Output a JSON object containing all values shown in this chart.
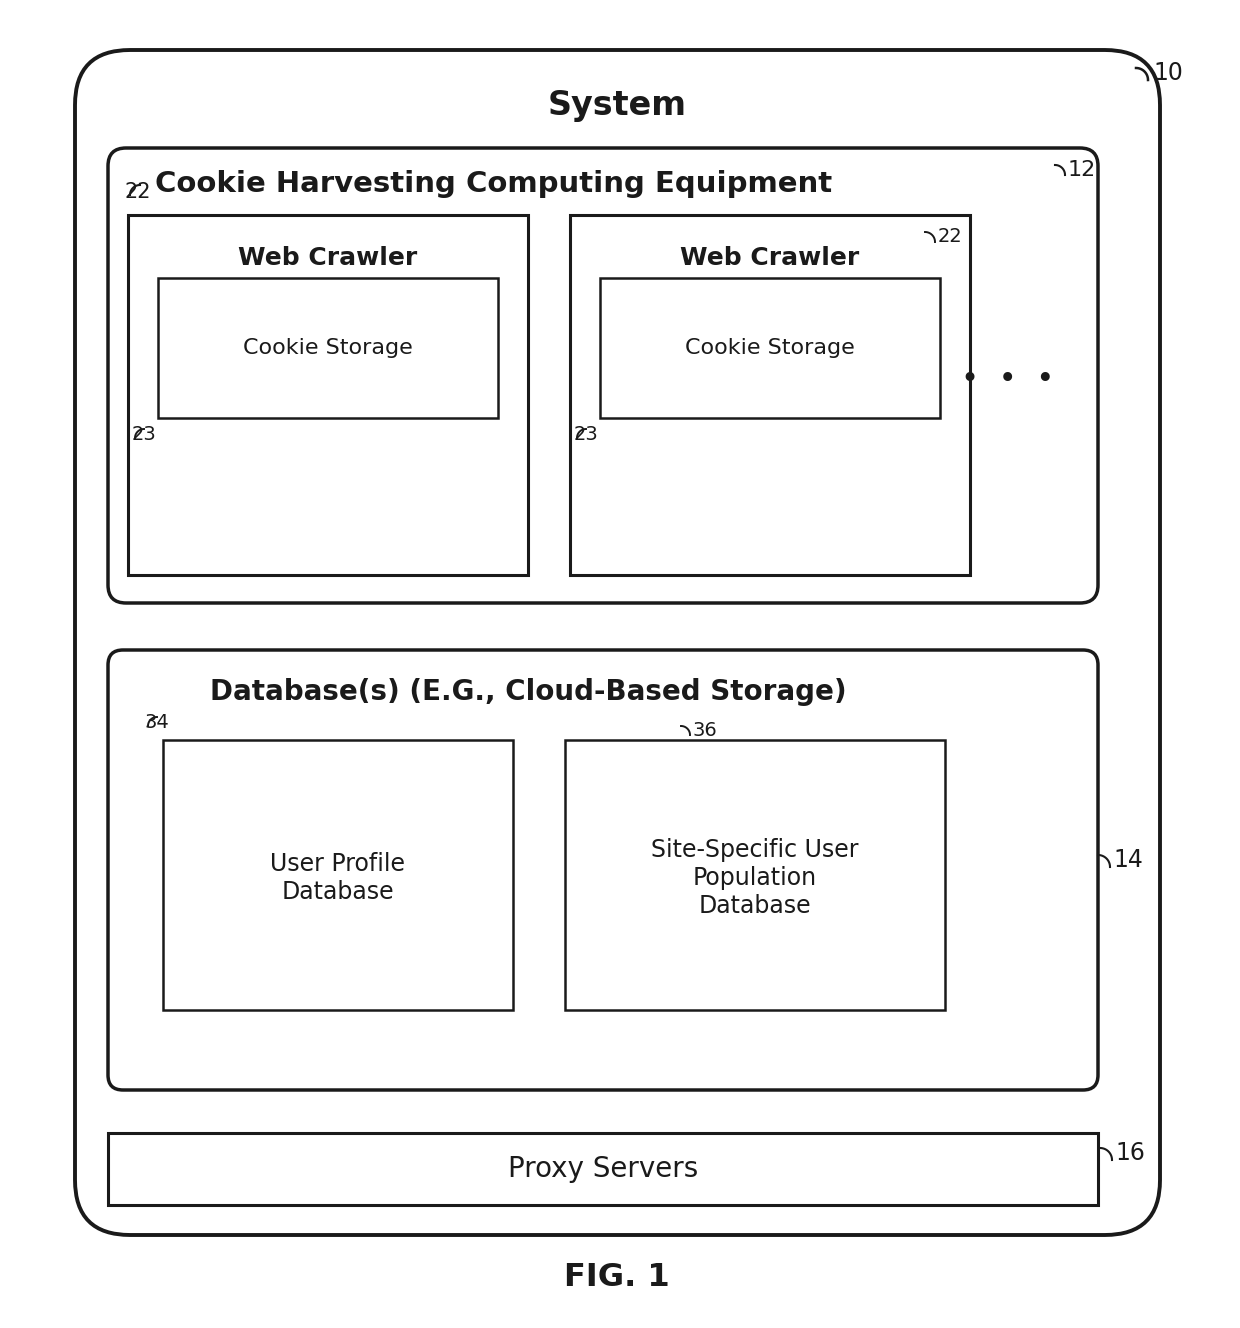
{
  "bg_color": "#ffffff",
  "fig_title": "FIG. 1",
  "system_label": "System",
  "ref_10": "10",
  "ref_12": "12",
  "ref_14": "14",
  "ref_16": "16",
  "ref_22a": "22",
  "ref_22b": "22",
  "ref_23a": "23",
  "ref_23b": "23",
  "ref_34": "34",
  "ref_36": "36",
  "chce_label": "Cookie Harvesting Computing Equipment",
  "wc_label": "Web Crawler",
  "cs_label": "Cookie Storage",
  "db_label": "Database(s) (E.G., Cloud-Based Storage)",
  "upd_label": "User Profile\nDatabase",
  "sspd_label": "Site-Specific User\nPopulation\nDatabase",
  "proxy_label": "Proxy Servers",
  "dots": "•  •  •",
  "line_color": "#1a1a1a",
  "text_color": "#1a1a1a",
  "box_fill": "#ffffff"
}
